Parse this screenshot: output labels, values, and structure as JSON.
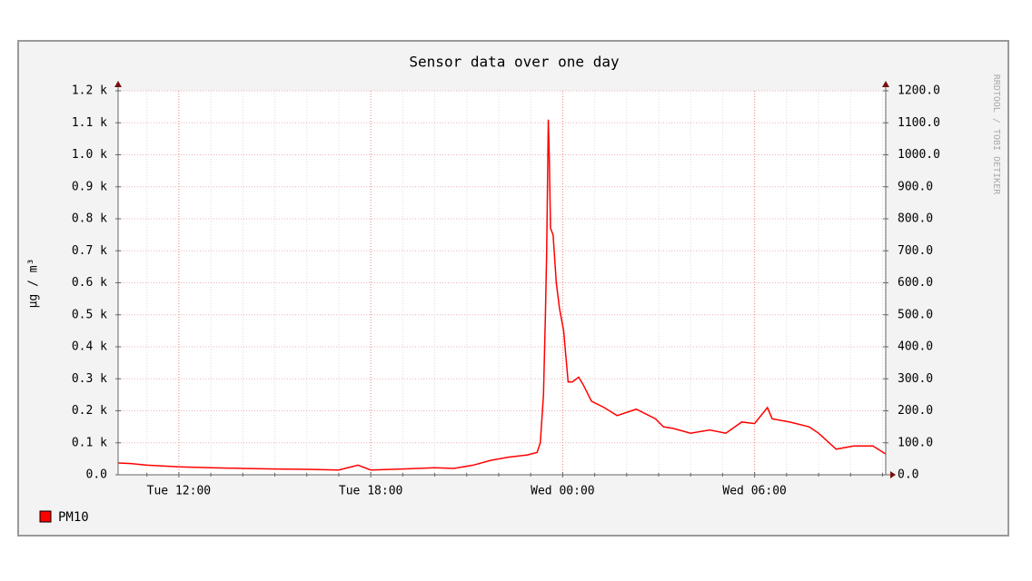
{
  "chart_data": {
    "type": "line",
    "title": "Sensor data over one day",
    "y_label": "µg / m³",
    "watermark": "RRDTOOL / TOBI OETIKER",
    "x": [
      10.1,
      10.5,
      11,
      12,
      13,
      14,
      15,
      16,
      17,
      17.6,
      18,
      19,
      20,
      20.6,
      21.2,
      21.75,
      22.3,
      22.9,
      23.2,
      23.3,
      23.4,
      23.46,
      23.5,
      23.55,
      23.58,
      23.62,
      23.7,
      23.8,
      23.9,
      24.03,
      24.17,
      24.3,
      24.5,
      24.65,
      24.9,
      25.3,
      25.7,
      26.3,
      26.9,
      27.15,
      27.45,
      28,
      28.6,
      29.1,
      29.6,
      30,
      30.4,
      30.55,
      31.1,
      31.7,
      32,
      32.55,
      33.1,
      33.7,
      34.1
    ],
    "series": [
      {
        "name": "PM10",
        "color": "#ff0000",
        "values": [
          37,
          35,
          30,
          25,
          22,
          20,
          18,
          17,
          15,
          30,
          15,
          18,
          22,
          20,
          30,
          45,
          55,
          62,
          70,
          100,
          250,
          500,
          700,
          1110,
          1000,
          770,
          750,
          600,
          520,
          450,
          290,
          290,
          305,
          280,
          230,
          210,
          185,
          205,
          175,
          150,
          145,
          130,
          140,
          130,
          165,
          160,
          210,
          175,
          165,
          150,
          130,
          80,
          90,
          90,
          65
        ]
      }
    ],
    "xlim": [
      10.1,
      34.1
    ],
    "xticks": [
      {
        "value": 12,
        "label": "Tue 12:00"
      },
      {
        "value": 18,
        "label": "Tue 18:00"
      },
      {
        "value": 24,
        "label": "Wed 00:00"
      },
      {
        "value": 30,
        "label": "Wed 06:00"
      }
    ],
    "x_minor_ticks": [
      11,
      13,
      14,
      15,
      16,
      17,
      19,
      20,
      21,
      22,
      23,
      25,
      26,
      27,
      28,
      29,
      31,
      32,
      33,
      34
    ],
    "ylim": [
      0,
      1200
    ],
    "yticks": [
      {
        "value": 0,
        "label": "0.0"
      },
      {
        "value": 100,
        "label": "0.1 k"
      },
      {
        "value": 200,
        "label": "0.2 k"
      },
      {
        "value": 300,
        "label": "0.3 k"
      },
      {
        "value": 400,
        "label": "0.4 k"
      },
      {
        "value": 500,
        "label": "0.5 k"
      },
      {
        "value": 600,
        "label": "0.6 k"
      },
      {
        "value": 700,
        "label": "0.7 k"
      },
      {
        "value": 800,
        "label": "0.8 k"
      },
      {
        "value": 900,
        "label": "0.9 k"
      },
      {
        "value": 1000,
        "label": "1.0 k"
      },
      {
        "value": 1100,
        "label": "1.1 k"
      },
      {
        "value": 1200,
        "label": "1.2 k"
      }
    ],
    "y2lim": [
      0,
      1200
    ],
    "y2ticks": [
      {
        "value": 0,
        "label": "0.0"
      },
      {
        "value": 100,
        "label": "100.0"
      },
      {
        "value": 200,
        "label": "200.0"
      },
      {
        "value": 300,
        "label": "300.0"
      },
      {
        "value": 400,
        "label": "400.0"
      },
      {
        "value": 500,
        "label": "500.0"
      },
      {
        "value": 600,
        "label": "600.0"
      },
      {
        "value": 700,
        "label": "700.0"
      },
      {
        "value": 800,
        "label": "800.0"
      },
      {
        "value": 900,
        "label": "900.0"
      },
      {
        "value": 1000,
        "label": "1000.0"
      },
      {
        "value": 1100,
        "label": "1100.0"
      },
      {
        "value": 1200,
        "label": "1200.0"
      }
    ],
    "grid": true
  }
}
